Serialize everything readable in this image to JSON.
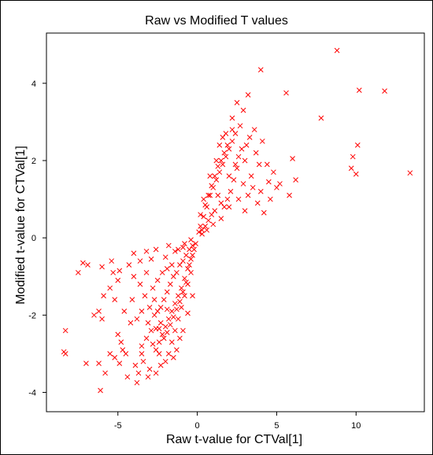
{
  "chart_data": {
    "type": "scatter",
    "title": "Raw vs Modified T values",
    "xlabel": "Raw t-value for CTVal[1]",
    "ylabel": "Modified t-value for CTVal[1]",
    "xlim": [
      -9.5,
      14.3
    ],
    "ylim": [
      -4.5,
      5.3
    ],
    "xticks": [
      -5,
      0,
      5,
      10
    ],
    "yticks": [
      -4,
      -2,
      0,
      2,
      4
    ],
    "marker": "x",
    "color": "#ff0000",
    "grid": false,
    "points": [
      [
        8.8,
        4.85
      ],
      [
        4.0,
        4.35
      ],
      [
        10.2,
        3.82
      ],
      [
        11.8,
        3.8
      ],
      [
        5.6,
        3.75
      ],
      [
        7.8,
        3.1
      ],
      [
        10.1,
        2.4
      ],
      [
        9.8,
        2.1
      ],
      [
        13.4,
        1.68
      ],
      [
        6.0,
        2.05
      ],
      [
        9.7,
        1.8
      ],
      [
        10.0,
        1.65
      ],
      [
        6.2,
        1.5
      ],
      [
        5.8,
        1.1
      ],
      [
        4.2,
        0.65
      ],
      [
        3.5,
        1.3
      ],
      [
        4.5,
        1.45
      ],
      [
        3.8,
        0.9
      ],
      [
        3.2,
        3.7
      ],
      [
        2.9,
        3.3
      ],
      [
        3.6,
        2.8
      ],
      [
        4.1,
        2.5
      ],
      [
        3.9,
        1.9
      ],
      [
        3.4,
        1.6
      ],
      [
        2.7,
        2.9
      ],
      [
        3.1,
        2.4
      ],
      [
        2.6,
        2.1
      ],
      [
        3.0,
        2.0
      ],
      [
        2.4,
        2.7
      ],
      [
        2.2,
        2.5
      ],
      [
        2.0,
        2.3
      ],
      [
        1.8,
        2.1
      ],
      [
        1.6,
        1.9
      ],
      [
        1.4,
        1.7
      ],
      [
        1.2,
        1.5
      ],
      [
        1.0,
        1.3
      ],
      [
        0.8,
        1.1
      ],
      [
        0.6,
        0.8
      ],
      [
        0.4,
        0.55
      ],
      [
        0.2,
        0.3
      ],
      [
        2.5,
        1.8
      ],
      [
        2.3,
        1.5
      ],
      [
        2.1,
        1.2
      ],
      [
        1.9,
        1.0
      ],
      [
        1.7,
        0.8
      ],
      [
        1.5,
        0.9
      ],
      [
        1.3,
        1.1
      ],
      [
        1.1,
        0.7
      ],
      [
        0.9,
        0.6
      ],
      [
        0.7,
        0.45
      ],
      [
        0.5,
        0.3
      ],
      [
        0.3,
        0.2
      ],
      [
        1.9,
        2.4
      ],
      [
        1.7,
        2.2
      ],
      [
        1.5,
        2.0
      ],
      [
        1.3,
        1.85
      ],
      [
        1.1,
        1.6
      ],
      [
        0.9,
        1.35
      ],
      [
        0.7,
        1.1
      ],
      [
        0.5,
        0.85
      ],
      [
        2.8,
        2.3
      ],
      [
        3.3,
        2.6
      ],
      [
        3.7,
        2.2
      ],
      [
        4.4,
        1.9
      ],
      [
        4.8,
        1.7
      ],
      [
        5.2,
        1.4
      ],
      [
        2.2,
        3.1
      ],
      [
        2.5,
        3.5
      ],
      [
        1.6,
        2.6
      ],
      [
        1.4,
        2.4
      ],
      [
        2.0,
        1.6
      ],
      [
        2.4,
        1.9
      ],
      [
        2.9,
        1.4
      ],
      [
        3.2,
        1.1
      ],
      [
        2.6,
        1.0
      ],
      [
        2.0,
        0.8
      ],
      [
        1.5,
        0.5
      ],
      [
        1.0,
        0.35
      ],
      [
        0.6,
        0.2
      ],
      [
        0.3,
        0.1
      ],
      [
        3.0,
        0.7
      ],
      [
        4.0,
        1.2
      ],
      [
        4.6,
        1.0
      ],
      [
        5.0,
        1.3
      ],
      [
        2.2,
        2.8
      ],
      [
        1.8,
        2.7
      ],
      [
        1.2,
        2.0
      ],
      [
        0.8,
        1.6
      ],
      [
        0.4,
        1.0
      ],
      [
        0.2,
        0.6
      ],
      [
        -0.2,
        -0.3
      ],
      [
        -0.4,
        -0.55
      ],
      [
        -0.6,
        -0.8
      ],
      [
        -0.8,
        -1.05
      ],
      [
        -1.0,
        -1.3
      ],
      [
        -1.2,
        -1.5
      ],
      [
        -1.4,
        -1.7
      ],
      [
        -1.6,
        -1.9
      ],
      [
        -1.8,
        -2.1
      ],
      [
        -2.0,
        -2.3
      ],
      [
        -2.2,
        -2.5
      ],
      [
        -2.4,
        -2.7
      ],
      [
        -2.6,
        -2.9
      ],
      [
        -0.3,
        -0.2
      ],
      [
        -0.5,
        -0.3
      ],
      [
        -0.7,
        -0.45
      ],
      [
        -0.9,
        -0.6
      ],
      [
        -1.1,
        -0.7
      ],
      [
        -1.3,
        -0.9
      ],
      [
        -1.5,
        -1.0
      ],
      [
        -1.7,
        -1.2
      ],
      [
        -1.9,
        -1.4
      ],
      [
        -2.1,
        -1.6
      ],
      [
        -2.3,
        -1.8
      ],
      [
        -2.5,
        -1.9
      ],
      [
        -0.4,
        -0.9
      ],
      [
        -0.6,
        -1.2
      ],
      [
        -0.8,
        -1.5
      ],
      [
        -1.0,
        -1.8
      ],
      [
        -1.2,
        -2.1
      ],
      [
        -1.4,
        -2.4
      ],
      [
        -1.6,
        -2.7
      ],
      [
        -1.8,
        -3.0
      ],
      [
        -2.0,
        -3.2
      ],
      [
        -2.9,
        -2.4
      ],
      [
        -3.2,
        -2.6
      ],
      [
        -3.5,
        -2.8
      ],
      [
        -2.7,
        -2.0
      ],
      [
        -3.0,
        -1.8
      ],
      [
        -3.3,
        -1.5
      ],
      [
        -3.6,
        -1.2
      ],
      [
        -4.0,
        -1.0
      ],
      [
        -2.8,
        -1.3
      ],
      [
        -2.5,
        -1.1
      ],
      [
        -2.2,
        -0.9
      ],
      [
        -1.9,
        -0.8
      ],
      [
        -1.6,
        -0.7
      ],
      [
        -3.4,
        -3.2
      ],
      [
        -3.7,
        -3.5
      ],
      [
        -3.0,
        -3.4
      ],
      [
        -2.4,
        -3.0
      ],
      [
        -4.4,
        -3.6
      ],
      [
        -3.8,
        -3.75
      ],
      [
        -4.5,
        -3.0
      ],
      [
        -4.8,
        -2.7
      ],
      [
        -5.0,
        -2.5
      ],
      [
        -4.2,
        -2.2
      ],
      [
        -4.6,
        -1.9
      ],
      [
        -5.2,
        -1.6
      ],
      [
        -5.5,
        -1.3
      ],
      [
        -5.0,
        -1.1
      ],
      [
        -5.4,
        -0.6
      ],
      [
        -4.9,
        -0.85
      ],
      [
        -4.3,
        -0.7
      ],
      [
        -4.0,
        -0.4
      ],
      [
        -3.6,
        -0.6
      ],
      [
        -3.2,
        -0.9
      ],
      [
        -6.0,
        -0.75
      ],
      [
        -5.3,
        -0.9
      ],
      [
        -5.9,
        -1.5
      ],
      [
        -6.2,
        -1.9
      ],
      [
        -6.5,
        -2.0
      ],
      [
        -6.0,
        -2.1
      ],
      [
        -7.2,
        -0.65
      ],
      [
        -6.9,
        -0.7
      ],
      [
        -7.5,
        -0.9
      ],
      [
        -8.3,
        -2.4
      ],
      [
        -8.4,
        -2.95
      ],
      [
        -8.3,
        -3.0
      ],
      [
        -7.0,
        -3.25
      ],
      [
        -6.2,
        -3.25
      ],
      [
        -5.8,
        -3.5
      ],
      [
        -6.1,
        -3.95
      ],
      [
        -5.5,
        -3.0
      ],
      [
        -5.2,
        -3.1
      ],
      [
        -4.9,
        -3.25
      ],
      [
        -4.7,
        -2.9
      ],
      [
        -3.9,
        -3.3
      ],
      [
        -3.5,
        -3.0
      ],
      [
        -2.8,
        -2.75
      ],
      [
        -2.6,
        -2.35
      ],
      [
        -2.3,
        -2.2
      ],
      [
        -2.1,
        -2.6
      ],
      [
        -1.9,
        -2.45
      ],
      [
        -1.7,
        -2.25
      ],
      [
        -1.5,
        -2.05
      ],
      [
        -1.3,
        -1.85
      ],
      [
        -1.1,
        -1.65
      ],
      [
        -0.9,
        -1.4
      ],
      [
        -0.7,
        -1.15
      ],
      [
        -0.5,
        -0.7
      ],
      [
        -0.3,
        -0.45
      ],
      [
        -0.1,
        -0.15
      ],
      [
        0.1,
        0.15
      ],
      [
        -2.9,
        -0.55
      ],
      [
        -2.0,
        -0.5
      ],
      [
        -1.4,
        -0.35
      ],
      [
        -0.9,
        -0.25
      ],
      [
        -1.9,
        -1.85
      ],
      [
        -2.4,
        -2.35
      ],
      [
        -2.7,
        -1.6
      ],
      [
        -3.1,
        -2.2
      ],
      [
        -3.8,
        -2.1
      ],
      [
        -4.1,
        -1.6
      ],
      [
        -3.5,
        -1.9
      ],
      [
        -1.2,
        -0.3
      ],
      [
        -0.8,
        -0.15
      ],
      [
        -0.4,
        -0.05
      ],
      [
        -1.8,
        -0.2
      ],
      [
        -2.6,
        -0.3
      ],
      [
        -3.2,
        -0.35
      ],
      [
        -0.6,
        -1.95
      ],
      [
        -0.3,
        -1.5
      ],
      [
        -0.9,
        -2.4
      ],
      [
        -1.1,
        -2.6
      ],
      [
        -1.3,
        -2.9
      ],
      [
        -1.5,
        -3.1
      ],
      [
        -2.3,
        -3.3
      ],
      [
        -2.6,
        -3.5
      ],
      [
        -3.1,
        -3.6
      ]
    ]
  }
}
